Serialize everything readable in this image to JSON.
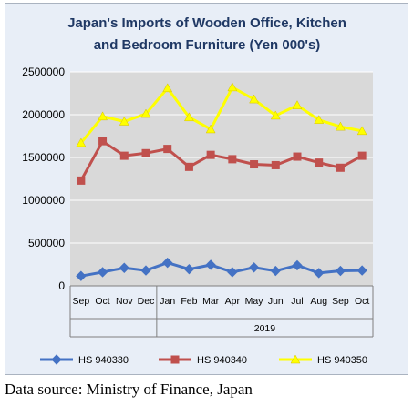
{
  "chart_data": {
    "type": "line",
    "title_lines": [
      "Japan's Imports of  Wooden  Office, Kitchen",
      "and Bedroom Furniture (Yen 000's)"
    ],
    "categories": [
      "Sep",
      "Oct",
      "Nov",
      "Dec",
      "Jan",
      "Feb",
      "Mar",
      "Apr",
      "May",
      "Jun",
      "Jul",
      "Aug",
      "Sep",
      "Oct"
    ],
    "year_label": "2019",
    "ylim": [
      0,
      2500000
    ],
    "yticks": [
      "0",
      "500000",
      "1000000",
      "1500000",
      "2000000",
      "2500000"
    ],
    "grid": true,
    "legend_position": "bottom",
    "series": [
      {
        "name": "HS 940330",
        "color": "#4472c4",
        "marker": "diamond",
        "values": [
          115000,
          160000,
          210000,
          180000,
          270000,
          195000,
          245000,
          160000,
          215000,
          175000,
          240000,
          150000,
          175000,
          180000
        ]
      },
      {
        "name": "HS 940340",
        "color": "#c0504d",
        "marker": "square",
        "values": [
          1230000,
          1690000,
          1520000,
          1550000,
          1600000,
          1390000,
          1530000,
          1480000,
          1420000,
          1410000,
          1510000,
          1440000,
          1380000,
          1520000
        ]
      },
      {
        "name": "HS 940350",
        "color": "#ffff00",
        "marker": "triangle",
        "values": [
          1670000,
          1980000,
          1920000,
          2010000,
          2310000,
          1970000,
          1830000,
          2320000,
          2180000,
          1990000,
          2110000,
          1940000,
          1860000,
          1810000
        ]
      }
    ]
  },
  "source_note": "Data source: Ministry of Finance, Japan",
  "colors": {
    "plot_bg": "#d9d9d9",
    "gridline": "#ffffff",
    "frame_bg": "#e8eef7",
    "title": "#1f3864"
  }
}
